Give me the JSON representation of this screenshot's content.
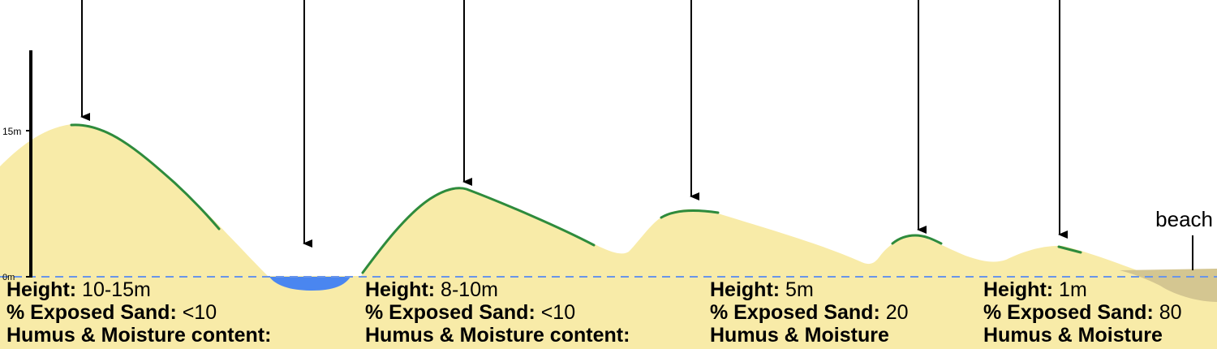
{
  "scale": {
    "top_label": "15m",
    "bottom_label": "0m"
  },
  "beach_label": "beach",
  "colors": {
    "sand": "#F8EBA8",
    "vegetation": "#2E8B3C",
    "water": "#4A86F0",
    "sea_level": "#6A95E8",
    "beach_wet": "#D4C691"
  },
  "zones": [
    {
      "height_label": "Height:",
      "height_value": " 10-15m",
      "sand_label": "% Exposed Sand:",
      "sand_value": " <10",
      "humus_label": "Humus & Moisture content:"
    },
    {
      "height_label": "Height:",
      "height_value": " 8-10m",
      "sand_label": "% Exposed Sand:",
      "sand_value": " <10",
      "humus_label": "Humus & Moisture content:"
    },
    {
      "height_label": "Height:",
      "height_value": " 5m",
      "sand_label": "% Exposed Sand:",
      "sand_value": " 20",
      "humus_label": "Humus & Moisture"
    },
    {
      "height_label": "Height:",
      "height_value": " 1m",
      "sand_label": "% Exposed Sand:",
      "sand_value": " 80",
      "humus_label": "Humus & Moisture"
    }
  ]
}
